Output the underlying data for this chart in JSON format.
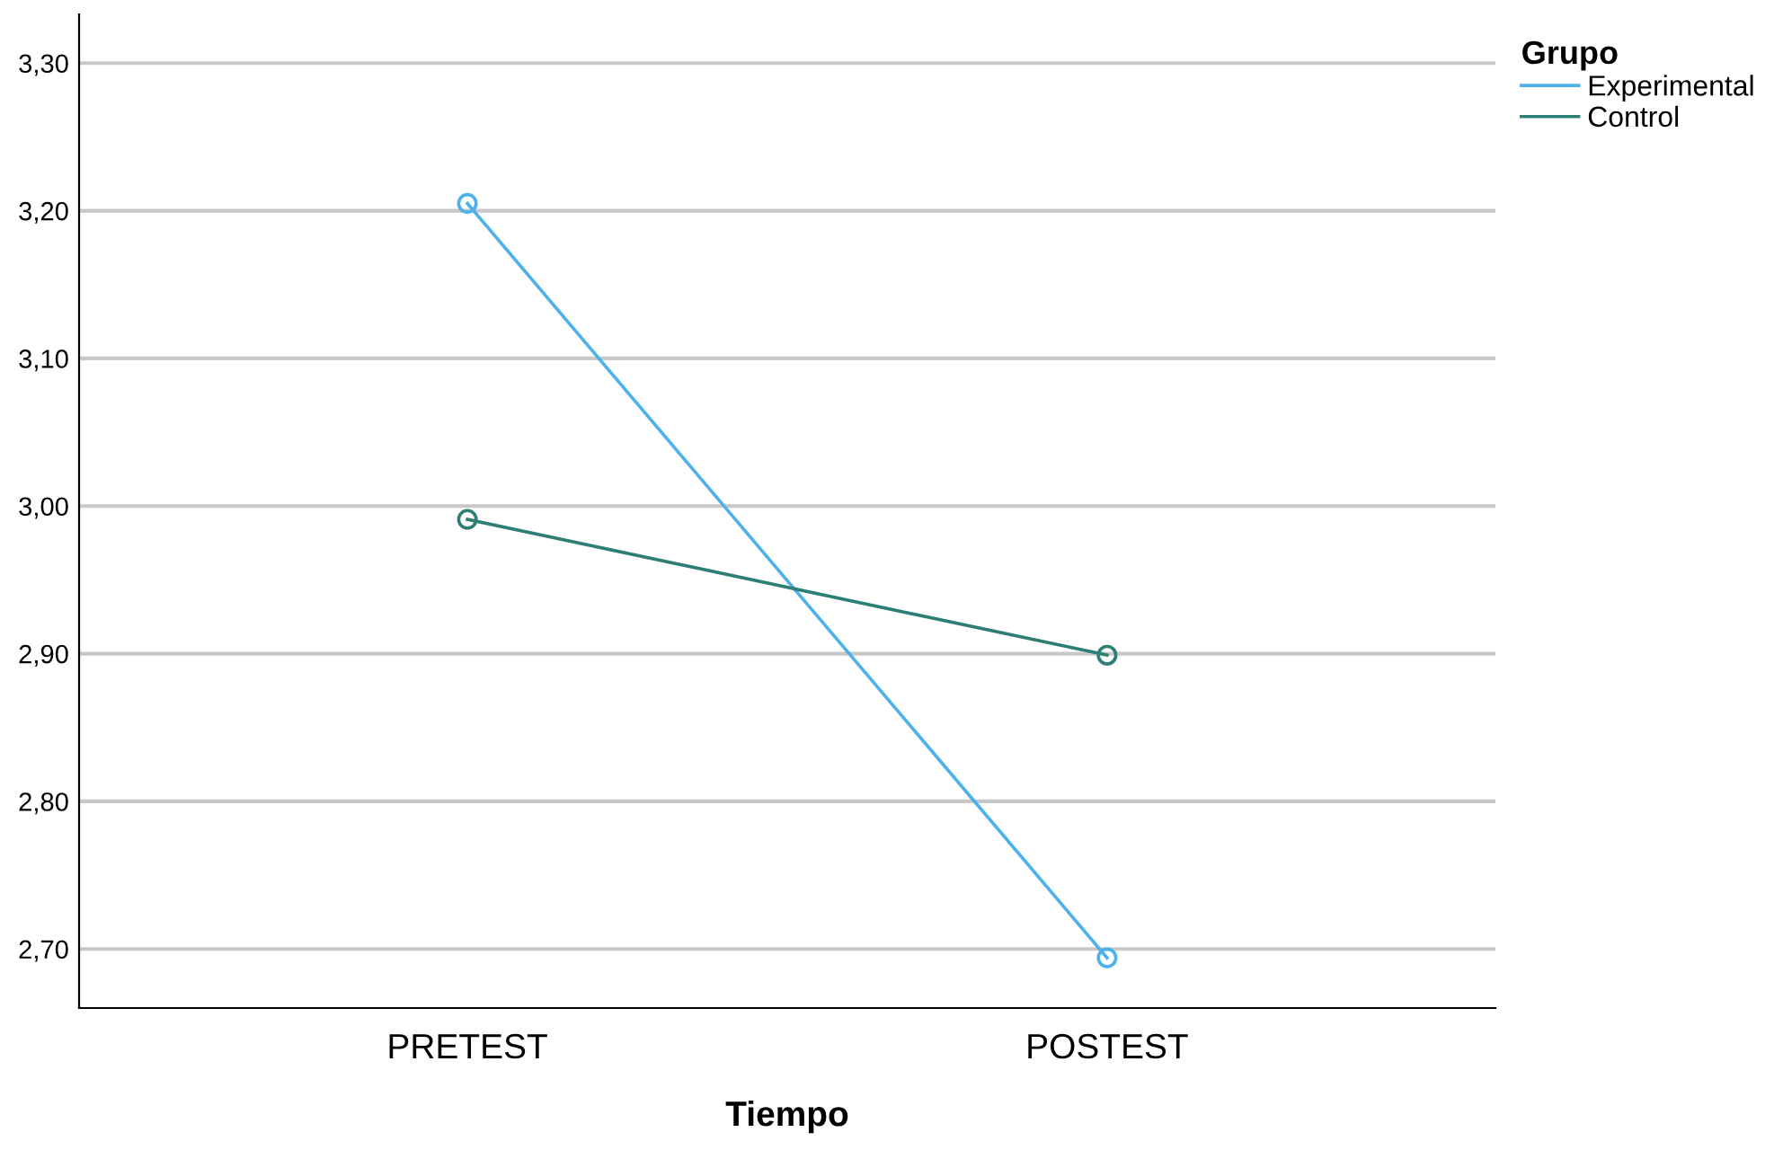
{
  "chart_data": {
    "type": "line",
    "xlabel": "Tiempo",
    "legend_title": "Grupo",
    "categories": [
      "PRETEST",
      "POSTEST"
    ],
    "series": [
      {
        "name": "Experimental",
        "color": "#4db1ec",
        "values": [
          3.205,
          2.694
        ]
      },
      {
        "name": "Control",
        "color": "#2d7f76",
        "values": [
          2.991,
          2.899
        ]
      }
    ],
    "ylim": [
      2.66,
      3.333
    ],
    "yticks": [
      {
        "value": 2.7,
        "label": "2,70"
      },
      {
        "value": 2.8,
        "label": "2,80"
      },
      {
        "value": 2.9,
        "label": "2,90"
      },
      {
        "value": 3.0,
        "label": "3,00"
      },
      {
        "value": 3.1,
        "label": "3,10"
      },
      {
        "value": 3.2,
        "label": "3,20"
      },
      {
        "value": 3.3,
        "label": "3,30"
      }
    ],
    "grid": "y",
    "legend": "top right",
    "marker": "circle",
    "line_style": "solid"
  }
}
